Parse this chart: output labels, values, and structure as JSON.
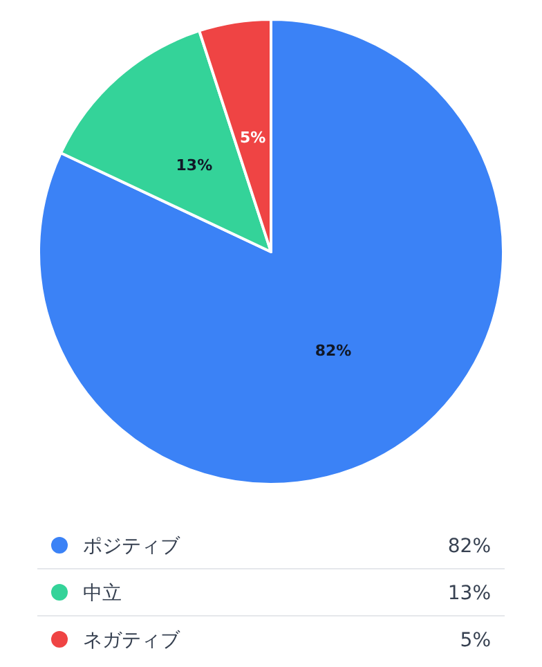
{
  "chart_data": {
    "type": "pie",
    "categories": [
      "ポジティブ",
      "中立",
      "ネガティブ"
    ],
    "values": [
      82,
      13,
      5
    ],
    "colors": [
      "#3b82f6",
      "#34d399",
      "#ef4444"
    ],
    "value_labels": [
      "82%",
      "13%",
      "5%"
    ],
    "legend": "bottom"
  }
}
